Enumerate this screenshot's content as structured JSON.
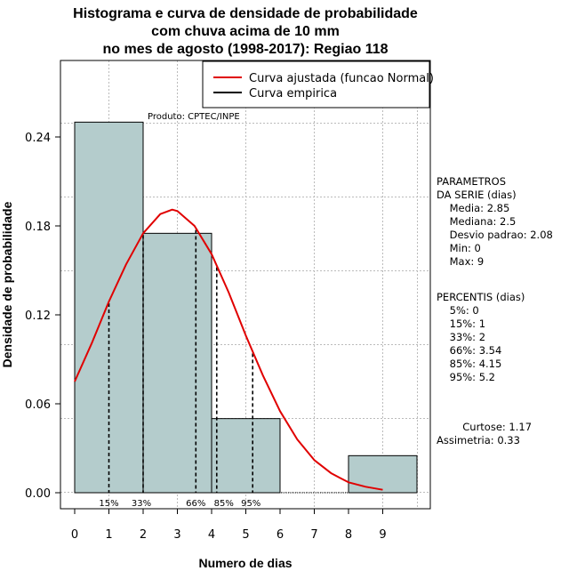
{
  "chart_data": {
    "type": "bar",
    "title": [
      "Histograma e curva de densidade de probabilidade",
      "com chuva acima de 10 mm",
      "no mes de agosto (1998-2017): Regiao 118"
    ],
    "xlabel": "Numero de dias",
    "ylabel": "Densidade de probabilidade",
    "xlim": [
      0,
      10
    ],
    "ylim": [
      0,
      0.28
    ],
    "x_ticks": [
      0,
      1,
      2,
      3,
      4,
      5,
      6,
      7,
      8,
      9
    ],
    "y_ticks": [
      0.0,
      0.06,
      0.12,
      0.18,
      0.24
    ],
    "y_tick_labels": [
      "0.00",
      "0.06",
      "0.12",
      "0.18",
      "0.24"
    ],
    "bins": [
      {
        "start": 0,
        "end": 2,
        "density": 0.25
      },
      {
        "start": 2,
        "end": 4,
        "density": 0.175
      },
      {
        "start": 4,
        "end": 6,
        "density": 0.05
      },
      {
        "start": 6,
        "end": 8,
        "density": 0.0
      },
      {
        "start": 8,
        "end": 10,
        "density": 0.025
      }
    ],
    "fitted_curve": {
      "name": "Curva ajustada (funcao Normal)",
      "color": "#e00000",
      "x": [
        0,
        0.5,
        1,
        1.5,
        2,
        2.5,
        2.85,
        3,
        3.5,
        4,
        4.5,
        5,
        5.5,
        6,
        6.5,
        7,
        7.5,
        8,
        8.5,
        9
      ],
      "y": [
        0.075,
        0.101,
        0.129,
        0.154,
        0.175,
        0.188,
        0.191,
        0.19,
        0.18,
        0.161,
        0.135,
        0.106,
        0.079,
        0.055,
        0.036,
        0.022,
        0.013,
        0.007,
        0.004,
        0.002
      ]
    },
    "empirical_curve": {
      "name": "Curva empirica",
      "color": "#000000"
    },
    "percentile_lines": [
      {
        "label": "15%",
        "x": 1.0
      },
      {
        "label": "33%",
        "x": 2.0
      },
      {
        "label": "66%",
        "x": 3.54
      },
      {
        "label": "85%",
        "x": 4.15
      },
      {
        "label": "95%",
        "x": 5.2
      }
    ],
    "legend": {
      "position": "top-right"
    },
    "grid": true,
    "bar_color": "#b4cccc"
  },
  "credit": "Produto: CPTEC/INPE",
  "side_panel": {
    "params_lines": [
      "PARAMETROS",
      "DA SERIE (dias)",
      "  Media: 2.85",
      "  Mediana: 2.5",
      "  Desvio padrao: 2.08",
      "  Min: 0",
      "  Max: 9"
    ],
    "percentis_lines": [
      "PERCENTIS (dias)",
      "  5%: 0",
      "  15%: 1",
      "  33%: 2",
      "  66%: 3.54",
      "  85%: 4.15",
      "  95%: 5.2"
    ],
    "shape_lines": [
      "    Curtose: 1.17",
      "Assimetria: 0.33"
    ]
  }
}
